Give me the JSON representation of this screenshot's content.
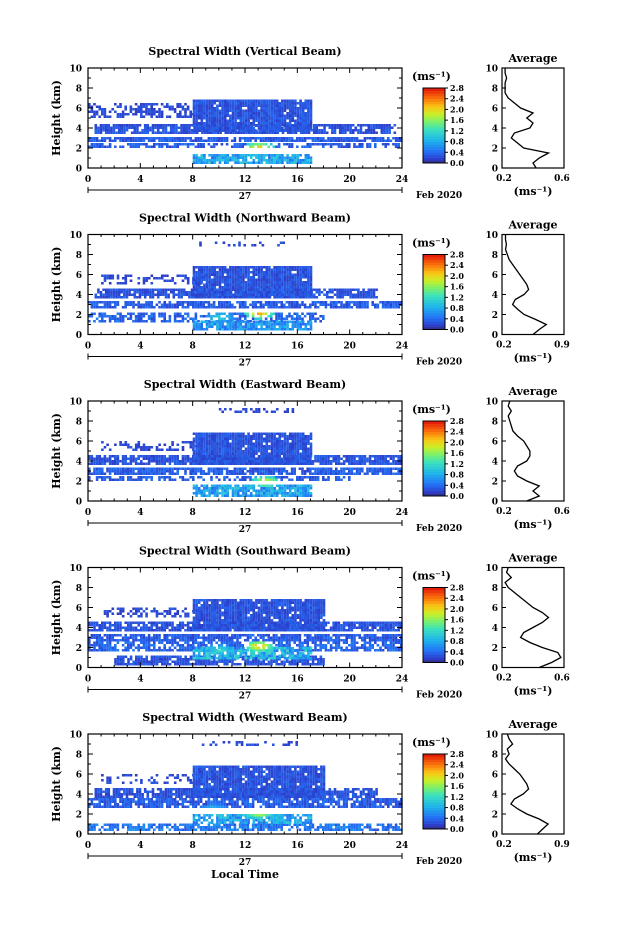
{
  "figure": {
    "date_label": "Feb 2020",
    "day_label": "27",
    "xlabel": "Local Time",
    "colorbar_unit": "(ms⁻¹)",
    "colorbar_ticks": [
      "0.0",
      "0.4",
      "0.8",
      "1.2",
      "1.6",
      "2.0",
      "2.4",
      "2.8"
    ],
    "avg_title": "Average",
    "avg_xlabel": "(ms⁻¹)"
  },
  "chart_data": [
    {
      "type": "heatmap",
      "title": "Spectral Width (Vertical Beam)",
      "ylabel": "Height (km)",
      "xlim": [
        0,
        24
      ],
      "ylim": [
        0,
        10
      ],
      "xticks": [
        0,
        4,
        8,
        12,
        16,
        20,
        24
      ],
      "yticks": [
        0,
        2,
        4,
        6,
        8,
        10
      ],
      "colorbar_range": [
        0,
        2.8
      ],
      "layers": [
        {
          "t": [
            0,
            24
          ],
          "z": [
            2.6,
            3.0
          ],
          "v": 0.3,
          "d": 0.85
        },
        {
          "t": [
            0.5,
            23.5
          ],
          "z": [
            3.4,
            4.2
          ],
          "v": 0.25,
          "d": 0.85
        },
        {
          "t": [
            0,
            8
          ],
          "z": [
            5.0,
            6.4
          ],
          "v": 0.2,
          "d": 0.5
        },
        {
          "t": [
            8,
            17
          ],
          "z": [
            3.6,
            6.8
          ],
          "v": 0.25,
          "d": 0.95
        },
        {
          "t": [
            0,
            24
          ],
          "z": [
            2.0,
            2.4
          ],
          "v": 0.3,
          "d": 0.6
        },
        {
          "t": [
            8,
            17
          ],
          "z": [
            0.4,
            1.4
          ],
          "v": 0.7,
          "d": 0.9
        }
      ],
      "peaks": [
        {
          "t": 13,
          "z": 1.9,
          "v": 2.3
        },
        {
          "t": 12.5,
          "z": 1.0,
          "v": 1.1
        }
      ],
      "average": {
        "xlim": [
          0.2,
          0.6
        ],
        "xticks": [
          0.2,
          0.6
        ],
        "height": [
          0,
          0.5,
          1,
          1.5,
          2,
          2.5,
          3,
          3.5,
          4,
          4.5,
          5,
          5.5,
          6,
          6.5,
          7,
          7.5,
          8,
          8.5,
          9,
          9.5,
          10
        ],
        "value": [
          0.42,
          0.4,
          0.44,
          0.5,
          0.34,
          0.3,
          0.26,
          0.28,
          0.38,
          0.4,
          0.36,
          0.4,
          0.32,
          0.28,
          0.24,
          0.22,
          0.22,
          0.22,
          0.23,
          0.22,
          0.22
        ]
      }
    },
    {
      "type": "heatmap",
      "title": "Spectral Width (Northward Beam)",
      "ylabel": "Height (km)",
      "xlim": [
        0,
        24
      ],
      "ylim": [
        0,
        10
      ],
      "xticks": [
        0,
        4,
        8,
        12,
        16,
        20,
        24
      ],
      "yticks": [
        0,
        2,
        4,
        6,
        8,
        10
      ],
      "colorbar_range": [
        0,
        2.8
      ],
      "layers": [
        {
          "t": [
            0,
            24
          ],
          "z": [
            2.6,
            3.2
          ],
          "v": 0.3,
          "d": 0.8
        },
        {
          "t": [
            0.5,
            22
          ],
          "z": [
            3.6,
            4.4
          ],
          "v": 0.25,
          "d": 0.8
        },
        {
          "t": [
            1,
            9
          ],
          "z": [
            5.0,
            6.0
          ],
          "v": 0.2,
          "d": 0.4
        },
        {
          "t": [
            8,
            17
          ],
          "z": [
            3.6,
            6.8
          ],
          "v": 0.25,
          "d": 0.95
        },
        {
          "t": [
            0,
            18
          ],
          "z": [
            1.2,
            2.0
          ],
          "v": 0.35,
          "d": 0.6
        },
        {
          "t": [
            8,
            17
          ],
          "z": [
            0.4,
            1.2
          ],
          "v": 0.6,
          "d": 0.9
        },
        {
          "t": [
            8.5,
            15
          ],
          "z": [
            8.8,
            9.2
          ],
          "v": 0.2,
          "d": 0.4
        }
      ],
      "peaks": [
        {
          "t": 13,
          "z": 2.0,
          "v": 2.4
        },
        {
          "t": 10,
          "z": 1.6,
          "v": 1.2
        }
      ],
      "average": {
        "xlim": [
          0.2,
          0.9
        ],
        "xticks": [
          0.2,
          0.9
        ],
        "height": [
          0,
          0.5,
          1,
          1.5,
          2,
          2.5,
          3,
          3.5,
          4,
          4.5,
          5,
          5.5,
          6,
          6.5,
          7,
          7.5,
          8,
          8.5,
          9,
          9.5,
          10
        ],
        "value": [
          0.55,
          0.62,
          0.7,
          0.58,
          0.45,
          0.38,
          0.32,
          0.35,
          0.45,
          0.5,
          0.48,
          0.44,
          0.4,
          0.36,
          0.32,
          0.28,
          0.26,
          0.24,
          0.25,
          0.24,
          0.24
        ]
      }
    },
    {
      "type": "heatmap",
      "title": "Spectral Width (Eastward Beam)",
      "ylabel": "Height (km)",
      "xlim": [
        0,
        24
      ],
      "ylim": [
        0,
        10
      ],
      "xticks": [
        0,
        4,
        8,
        12,
        16,
        20,
        24
      ],
      "yticks": [
        0,
        2,
        4,
        6,
        8,
        10
      ],
      "colorbar_range": [
        0,
        2.8
      ],
      "layers": [
        {
          "t": [
            0,
            24
          ],
          "z": [
            2.6,
            3.2
          ],
          "v": 0.3,
          "d": 0.85
        },
        {
          "t": [
            0,
            24
          ],
          "z": [
            3.6,
            4.4
          ],
          "v": 0.25,
          "d": 0.85
        },
        {
          "t": [
            1,
            8
          ],
          "z": [
            5.0,
            6.0
          ],
          "v": 0.2,
          "d": 0.4
        },
        {
          "t": [
            8,
            17
          ],
          "z": [
            3.6,
            6.8
          ],
          "v": 0.25,
          "d": 0.95
        },
        {
          "t": [
            0,
            20
          ],
          "z": [
            2.0,
            2.4
          ],
          "v": 0.3,
          "d": 0.6
        },
        {
          "t": [
            8,
            17
          ],
          "z": [
            0.4,
            1.6
          ],
          "v": 0.7,
          "d": 0.9
        },
        {
          "t": [
            10,
            16
          ],
          "z": [
            8.8,
            9.2
          ],
          "v": 0.2,
          "d": 0.4
        }
      ],
      "peaks": [
        {
          "t": 13.5,
          "z": 1.8,
          "v": 2.2
        },
        {
          "t": 11,
          "z": 1.2,
          "v": 1.0
        }
      ],
      "average": {
        "xlim": [
          0.2,
          0.6
        ],
        "xticks": [
          0.2,
          0.6
        ],
        "height": [
          0,
          0.5,
          1,
          1.5,
          2,
          2.5,
          3,
          3.5,
          4,
          4.5,
          5,
          5.5,
          6,
          6.5,
          7,
          7.5,
          8,
          8.5,
          9,
          9.5,
          10
        ],
        "value": [
          0.36,
          0.44,
          0.4,
          0.44,
          0.36,
          0.3,
          0.28,
          0.3,
          0.36,
          0.38,
          0.38,
          0.36,
          0.34,
          0.3,
          0.27,
          0.26,
          0.25,
          0.24,
          0.26,
          0.24,
          0.25
        ]
      }
    },
    {
      "type": "heatmap",
      "title": "Spectral Width (Southward Beam)",
      "ylabel": "Height (km)",
      "xlim": [
        0,
        24
      ],
      "ylim": [
        0,
        10
      ],
      "xticks": [
        0,
        4,
        8,
        12,
        16,
        20,
        24
      ],
      "yticks": [
        0,
        2,
        4,
        6,
        8,
        10
      ],
      "colorbar_range": [
        0,
        2.8
      ],
      "layers": [
        {
          "t": [
            0,
            24
          ],
          "z": [
            2.6,
            3.2
          ],
          "v": 0.3,
          "d": 0.85
        },
        {
          "t": [
            0,
            24
          ],
          "z": [
            3.6,
            4.4
          ],
          "v": 0.25,
          "d": 0.85
        },
        {
          "t": [
            1,
            8
          ],
          "z": [
            5.0,
            6.0
          ],
          "v": 0.2,
          "d": 0.5
        },
        {
          "t": [
            8,
            18
          ],
          "z": [
            3.6,
            6.8
          ],
          "v": 0.25,
          "d": 0.95
        },
        {
          "t": [
            0,
            24
          ],
          "z": [
            1.6,
            2.4
          ],
          "v": 0.35,
          "d": 0.7
        },
        {
          "t": [
            2,
            18
          ],
          "z": [
            0.2,
            1.2
          ],
          "v": 0.25,
          "d": 0.85
        },
        {
          "t": [
            8,
            17
          ],
          "z": [
            0.8,
            2.0
          ],
          "v": 0.8,
          "d": 0.8
        }
      ],
      "peaks": [
        {
          "t": 13,
          "z": 2.0,
          "v": 2.4
        },
        {
          "t": 10,
          "z": 1.6,
          "v": 1.3
        }
      ],
      "average": {
        "xlim": [
          0.2,
          0.6
        ],
        "xticks": [
          0.2,
          0.6
        ],
        "height": [
          0,
          0.5,
          1,
          1.5,
          2,
          2.5,
          3,
          3.5,
          4,
          4.5,
          5,
          5.5,
          6,
          6.5,
          7,
          7.5,
          8,
          8.5,
          9,
          9.5,
          10
        ],
        "value": [
          0.44,
          0.52,
          0.58,
          0.56,
          0.46,
          0.38,
          0.32,
          0.34,
          0.4,
          0.46,
          0.5,
          0.46,
          0.4,
          0.36,
          0.32,
          0.28,
          0.24,
          0.22,
          0.26,
          0.23,
          0.24
        ]
      }
    },
    {
      "type": "heatmap",
      "title": "Spectral Width (Westward Beam)",
      "ylabel": "Height (km)",
      "xlim": [
        0,
        24
      ],
      "ylim": [
        0,
        10
      ],
      "xticks": [
        0,
        4,
        8,
        12,
        16,
        20,
        24
      ],
      "yticks": [
        0,
        2,
        4,
        6,
        8,
        10
      ],
      "colorbar_range": [
        0,
        2.8
      ],
      "layers": [
        {
          "t": [
            0,
            24
          ],
          "z": [
            2.6,
            3.4
          ],
          "v": 0.3,
          "d": 0.8
        },
        {
          "t": [
            0.5,
            22
          ],
          "z": [
            3.6,
            4.4
          ],
          "v": 0.25,
          "d": 0.8
        },
        {
          "t": [
            1,
            8
          ],
          "z": [
            5.0,
            6.0
          ],
          "v": 0.2,
          "d": 0.4
        },
        {
          "t": [
            8,
            18
          ],
          "z": [
            3.6,
            6.8
          ],
          "v": 0.25,
          "d": 0.95
        },
        {
          "t": [
            0,
            24
          ],
          "z": [
            0.3,
            1.0
          ],
          "v": 0.45,
          "d": 0.75
        },
        {
          "t": [
            8,
            17
          ],
          "z": [
            1.0,
            2.0
          ],
          "v": 0.7,
          "d": 0.8
        },
        {
          "t": [
            8.5,
            16
          ],
          "z": [
            8.8,
            9.2
          ],
          "v": 0.2,
          "d": 0.4
        }
      ],
      "peaks": [
        {
          "t": 13,
          "z": 2.0,
          "v": 2.2
        },
        {
          "t": 9.5,
          "z": 2.3,
          "v": 1.1
        }
      ],
      "average": {
        "xlim": [
          0.2,
          0.9
        ],
        "xticks": [
          0.2,
          0.9
        ],
        "height": [
          0,
          0.5,
          1,
          1.5,
          2,
          2.5,
          3,
          3.5,
          4,
          4.5,
          5,
          5.5,
          6,
          6.5,
          7,
          7.5,
          8,
          8.5,
          9,
          9.5,
          10
        ],
        "value": [
          0.6,
          0.66,
          0.72,
          0.62,
          0.48,
          0.38,
          0.3,
          0.34,
          0.44,
          0.5,
          0.48,
          0.44,
          0.4,
          0.34,
          0.28,
          0.24,
          0.28,
          0.26,
          0.32,
          0.28,
          0.26
        ]
      }
    }
  ]
}
